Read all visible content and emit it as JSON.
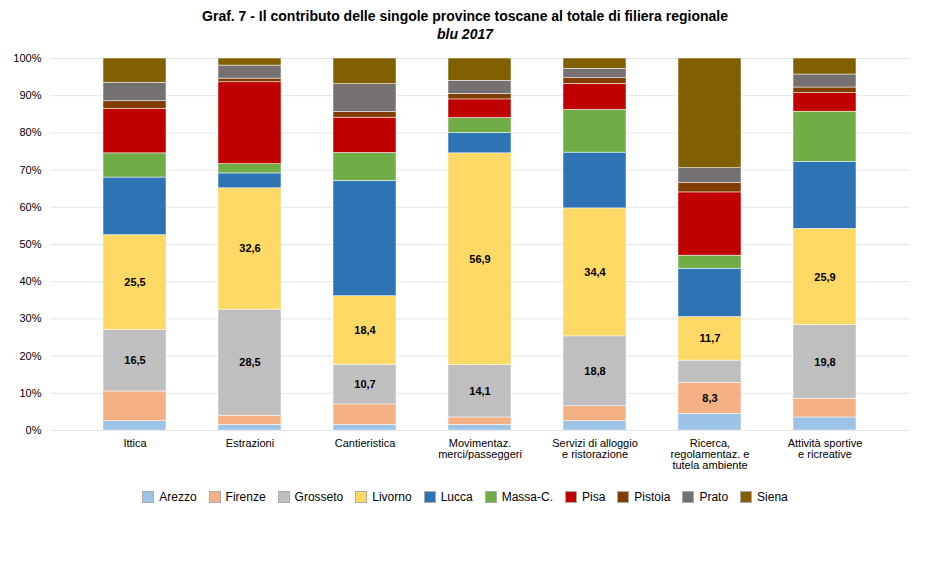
{
  "chart_data": {
    "type": "bar",
    "title": "Graf. 7 - Il contributo delle singole province toscane al totale di filiera regionale",
    "subtitle": "blu 2017",
    "categories": [
      "Ittica",
      "Estrazioni",
      "Cantieristica",
      "Movimentaz.\nmerci/passeggeri",
      "Servizi di alloggio\ne ristorazione",
      "Ricerca,\nregolamentaz. e\ntutela ambiente",
      "Attività sportive\ne ricreative"
    ],
    "series": [
      {
        "name": "Arezzo",
        "color": "#9DC3E6",
        "values": [
          2.5,
          1.5,
          1.5,
          1.5,
          2.5,
          4.5,
          3.5
        ]
      },
      {
        "name": "Firenze",
        "color": "#F4B183",
        "values": [
          8.0,
          2.5,
          5.5,
          2.0,
          4.0,
          8.3,
          5.0
        ],
        "value_labels": [
          null,
          null,
          null,
          null,
          null,
          "8,3",
          null
        ]
      },
      {
        "name": "Grosseto",
        "color": "#BFBFBF",
        "values": [
          16.5,
          28.5,
          10.7,
          14.1,
          18.8,
          6.0,
          19.8
        ],
        "value_labels": [
          "16,5",
          "28,5",
          "10,7",
          "14,1",
          "18,8",
          null,
          "19,8"
        ]
      },
      {
        "name": "Livorno",
        "color": "#FFD966",
        "values": [
          25.5,
          32.6,
          18.4,
          56.9,
          34.4,
          11.7,
          25.9
        ],
        "value_labels": [
          "25,5",
          "32,6",
          "18,4",
          "56,9",
          "34,4",
          "11,7",
          "25,9"
        ]
      },
      {
        "name": "Lucca",
        "color": "#2E74B5",
        "values": [
          15.5,
          4.0,
          31.0,
          5.5,
          15.0,
          13.0,
          18.0
        ]
      },
      {
        "name": "Massa-C.",
        "color": "#70AD47",
        "values": [
          6.5,
          2.5,
          7.5,
          4.0,
          11.5,
          3.5,
          13.5
        ]
      },
      {
        "name": "Pisa",
        "color": "#C00000",
        "values": [
          12.0,
          22.0,
          9.5,
          5.0,
          7.0,
          17.0,
          5.0
        ]
      },
      {
        "name": "Pistoia",
        "color": "#833C00",
        "values": [
          2.0,
          1.0,
          1.5,
          1.5,
          1.5,
          2.5,
          1.5
        ]
      },
      {
        "name": "Prato",
        "color": "#767171",
        "values": [
          5.0,
          3.5,
          7.5,
          3.5,
          2.5,
          4.0,
          3.5
        ]
      },
      {
        "name": "Siena",
        "color": "#806000",
        "values": [
          6.5,
          1.9,
          6.9,
          6.0,
          2.8,
          29.5,
          4.3
        ]
      }
    ],
    "ylim": [
      0,
      100
    ],
    "yticks": [
      {
        "value": 0,
        "label": "0%"
      },
      {
        "value": 10,
        "label": "10%"
      },
      {
        "value": 20,
        "label": "20%"
      },
      {
        "value": 30,
        "label": "30%"
      },
      {
        "value": 40,
        "label": "40%"
      },
      {
        "value": 50,
        "label": "50%"
      },
      {
        "value": 60,
        "label": "60%"
      },
      {
        "value": 70,
        "label": "70%"
      },
      {
        "value": 80,
        "label": "80%"
      },
      {
        "value": 90,
        "label": "90%"
      },
      {
        "value": 100,
        "label": "100%"
      }
    ],
    "stacked": true,
    "data_labels": true,
    "grid": true,
    "legend": "bottom"
  }
}
